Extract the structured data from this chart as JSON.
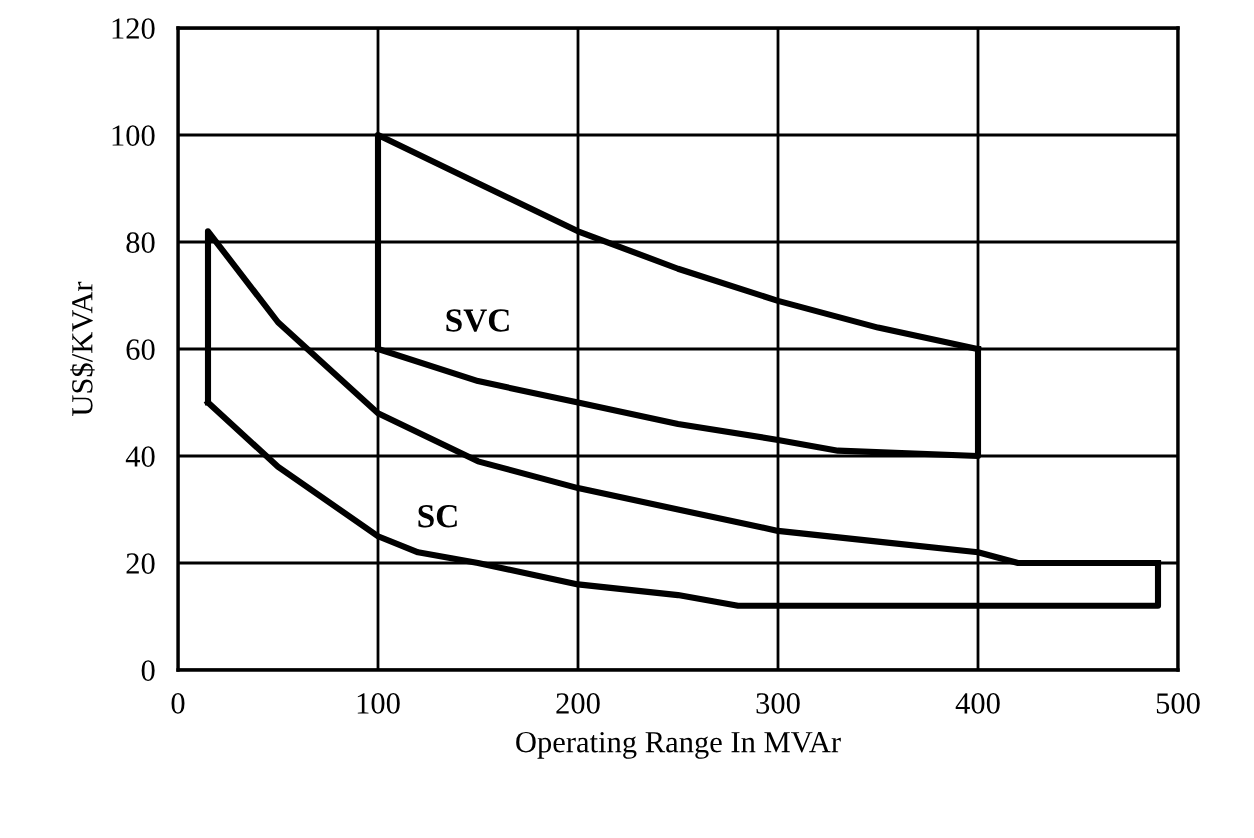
{
  "chart_data": {
    "type": "line",
    "xlabel": "Operating Range In MVAr",
    "ylabel": "US$/KVAr",
    "xlim": [
      0,
      500
    ],
    "ylim": [
      0,
      120
    ],
    "xticks": [
      0,
      100,
      200,
      300,
      400,
      500
    ],
    "yticks": [
      0,
      20,
      40,
      60,
      80,
      100,
      120
    ],
    "grid": true,
    "marker": "none",
    "line_style": "solid",
    "series": [
      {
        "color": "#000000",
        "x": [
          100,
          100,
          150,
          200,
          250,
          300,
          350,
          400
        ],
        "values": [
          60,
          100,
          91,
          82,
          75,
          69,
          64,
          60
        ]
      },
      {
        "color": "#000000",
        "x": [
          100,
          150,
          200,
          250,
          300,
          330,
          400,
          400
        ],
        "values": [
          60,
          54,
          50,
          46,
          43,
          41,
          40,
          60
        ]
      },
      {
        "color": "#000000",
        "x": [
          15,
          15,
          50,
          100,
          150,
          200,
          250,
          300,
          350,
          400,
          420,
          490
        ],
        "values": [
          50,
          82,
          65,
          48,
          39,
          34,
          30,
          26,
          24,
          22,
          20,
          20
        ]
      },
      {
        "color": "#000000",
        "x": [
          15,
          50,
          100,
          120,
          150,
          200,
          250,
          280,
          300,
          400,
          490,
          490
        ],
        "values": [
          50,
          38,
          25,
          22,
          20,
          16,
          14,
          12,
          12,
          12,
          12,
          20
        ]
      }
    ],
    "annotations": [
      "SVC",
      "SC"
    ]
  }
}
